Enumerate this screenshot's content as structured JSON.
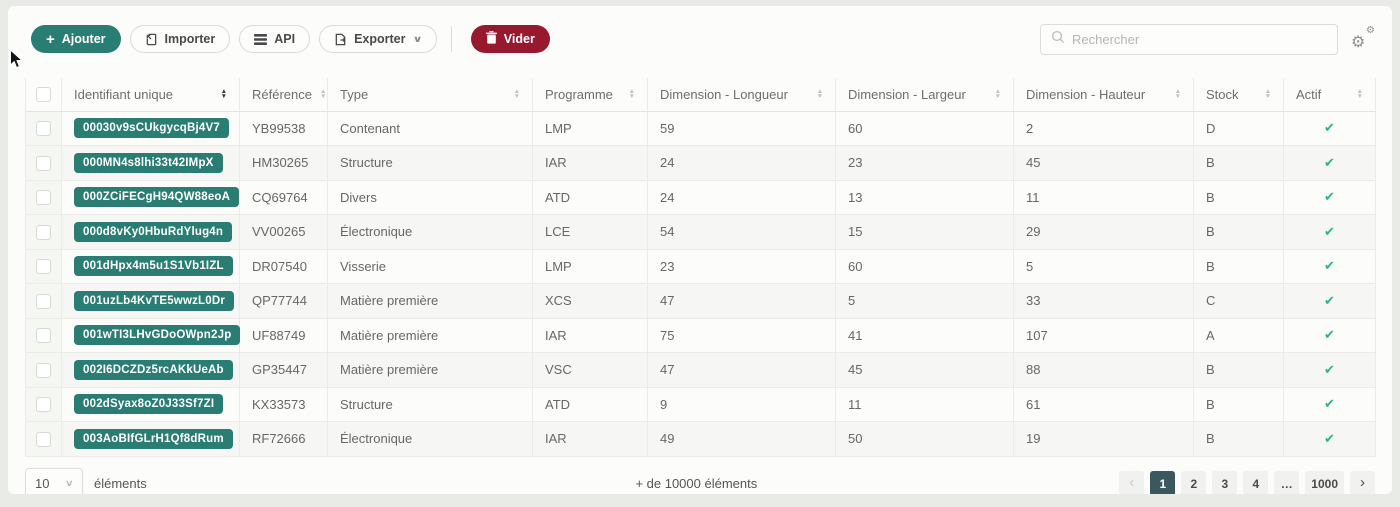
{
  "toolbar": {
    "add_label": "Ajouter",
    "import_label": "Importer",
    "api_label": "API",
    "export_label": "Exporter",
    "clear_label": "Vider"
  },
  "search": {
    "placeholder": "Rechercher"
  },
  "table": {
    "sorted_column": "Identifiant unique",
    "columns": [
      {
        "label": "Identifiant unique",
        "sorted": true
      },
      {
        "label": "Référence",
        "sorted": false
      },
      {
        "label": "Type",
        "sorted": false
      },
      {
        "label": "Programme",
        "sorted": false
      },
      {
        "label": "Dimension - Longueur",
        "sorted": false
      },
      {
        "label": "Dimension - Largeur",
        "sorted": false
      },
      {
        "label": "Dimension - Hauteur",
        "sorted": false
      },
      {
        "label": "Stock",
        "sorted": false
      },
      {
        "label": "Actif",
        "sorted": false
      }
    ],
    "rows": [
      {
        "id": "00030v9sCUkgycqBj4V7",
        "reference": "YB99538",
        "type": "Contenant",
        "programme": "LMP",
        "longueur": "59",
        "largeur": "60",
        "hauteur": "2",
        "stock": "D",
        "actif": true
      },
      {
        "id": "000MN4s8lhi33t42IMpX",
        "reference": "HM30265",
        "type": "Structure",
        "programme": "IAR",
        "longueur": "24",
        "largeur": "23",
        "hauteur": "45",
        "stock": "B",
        "actif": true
      },
      {
        "id": "000ZCiFECgH94QW88eoA",
        "reference": "CQ69764",
        "type": "Divers",
        "programme": "ATD",
        "longueur": "24",
        "largeur": "13",
        "hauteur": "11",
        "stock": "B",
        "actif": true
      },
      {
        "id": "000d8vKy0HbuRdYlug4n",
        "reference": "VV00265",
        "type": "Électronique",
        "programme": "LCE",
        "longueur": "54",
        "largeur": "15",
        "hauteur": "29",
        "stock": "B",
        "actif": true
      },
      {
        "id": "001dHpx4m5u1S1Vb1IZL",
        "reference": "DR07540",
        "type": "Visserie",
        "programme": "LMP",
        "longueur": "23",
        "largeur": "60",
        "hauteur": "5",
        "stock": "B",
        "actif": true
      },
      {
        "id": "001uzLb4KvTE5wwzL0Dr",
        "reference": "QP77744",
        "type": "Matière première",
        "programme": "XCS",
        "longueur": "47",
        "largeur": "5",
        "hauteur": "33",
        "stock": "C",
        "actif": true
      },
      {
        "id": "001wTI3LHvGDoOWpn2Jp",
        "reference": "UF88749",
        "type": "Matière première",
        "programme": "IAR",
        "longueur": "75",
        "largeur": "41",
        "hauteur": "107",
        "stock": "A",
        "actif": true
      },
      {
        "id": "002I6DCZDz5rcAKkUeAb",
        "reference": "GP35447",
        "type": "Matière première",
        "programme": "VSC",
        "longueur": "47",
        "largeur": "45",
        "hauteur": "88",
        "stock": "B",
        "actif": true
      },
      {
        "id": "002dSyax8oZ0J33Sf7ZI",
        "reference": "KX33573",
        "type": "Structure",
        "programme": "ATD",
        "longueur": "9",
        "largeur": "11",
        "hauteur": "61",
        "stock": "B",
        "actif": true
      },
      {
        "id": "003AoBIfGLrH1Qf8dRum",
        "reference": "RF72666",
        "type": "Électronique",
        "programme": "IAR",
        "longueur": "49",
        "largeur": "50",
        "hauteur": "19",
        "stock": "B",
        "actif": true
      }
    ]
  },
  "footer": {
    "page_size": "10",
    "items_label": "éléments",
    "total_label": "+ de 10000 éléments",
    "pagination": {
      "prev": "‹",
      "next": "›",
      "pages": [
        {
          "label": "1",
          "active": true
        },
        {
          "label": "2",
          "active": false
        },
        {
          "label": "3",
          "active": false
        },
        {
          "label": "4",
          "active": false
        },
        {
          "label": "…",
          "active": false
        },
        {
          "label": "1000",
          "active": false
        }
      ]
    }
  },
  "icons": {
    "add": "+",
    "sort_up": "▲",
    "sort_down": "▼",
    "check": "✔",
    "export_chevron": "∨",
    "select_chevron": "∨",
    "gears": "⚙"
  },
  "colors": {
    "accent_teal": "#2a7d72",
    "danger_red": "#97192e",
    "success_green": "#28b485",
    "active_page_bg": "#3b585e",
    "page_background": "#e9ebe7"
  }
}
